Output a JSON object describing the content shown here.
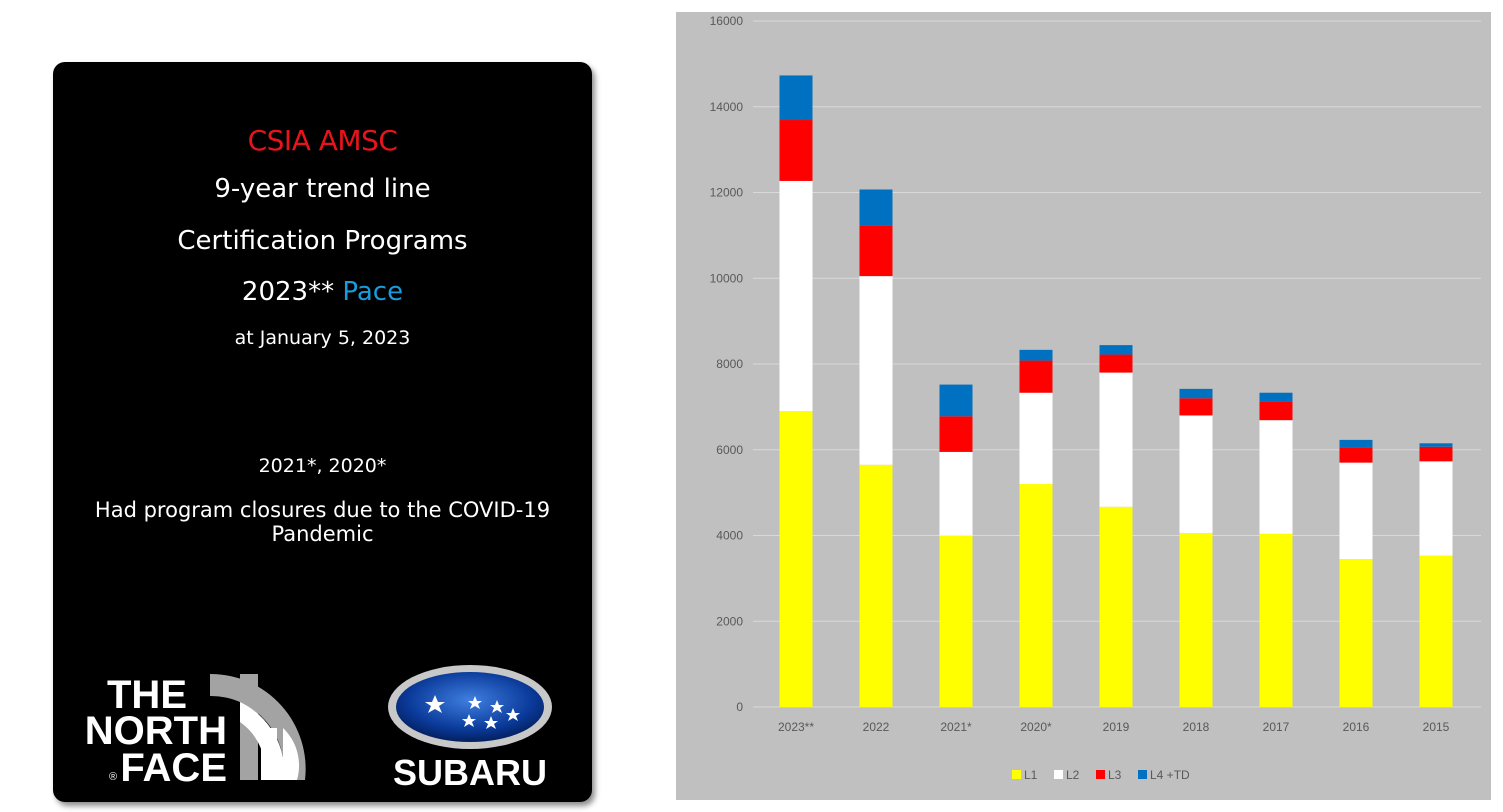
{
  "card": {
    "title": "CSIA AMSC",
    "line2": "9-year trend line",
    "line3": "Certification Programs",
    "line4_prefix": "2023** ",
    "line4_accent": "Pace",
    "line5": "at January 5, 2023",
    "note_years": "2021*, 2020*",
    "note_text": "Had program closures due to the COVID-19 Pandemic",
    "title_color": "#e8141b",
    "accent_color": "#1a9bdc"
  },
  "logos": {
    "north_face_lines": [
      "THE",
      "NORTH",
      "FACE"
    ],
    "north_face_mark": "®",
    "subaru_text": "SUBARU"
  },
  "chart_data": {
    "type": "bar",
    "stacked": true,
    "categories": [
      "2023**",
      "2022",
      "2021*",
      "2020*",
      "2019",
      "2018",
      "2017",
      "2016",
      "2015"
    ],
    "series": [
      {
        "name": "L1",
        "color": "#ffff00",
        "values": [
          6900,
          5650,
          4000,
          5200,
          4670,
          4060,
          4040,
          3450,
          3530
        ]
      },
      {
        "name": "L2",
        "color": "#ffffff",
        "values": [
          5370,
          4400,
          1950,
          2130,
          3130,
          2740,
          2650,
          2250,
          2200
        ]
      },
      {
        "name": "L3",
        "color": "#ff0000",
        "values": [
          1420,
          1170,
          830,
          750,
          420,
          400,
          440,
          350,
          340
        ]
      },
      {
        "name": "L4 +TD",
        "color": "#0070c0",
        "values": [
          1040,
          850,
          740,
          250,
          220,
          220,
          200,
          180,
          80
        ]
      }
    ],
    "ylim": [
      0,
      16000
    ],
    "yticks": [
      0,
      2000,
      4000,
      6000,
      8000,
      10000,
      12000,
      14000,
      16000
    ],
    "grid": true,
    "legend": "bottom",
    "background": "#c0c0c0"
  }
}
